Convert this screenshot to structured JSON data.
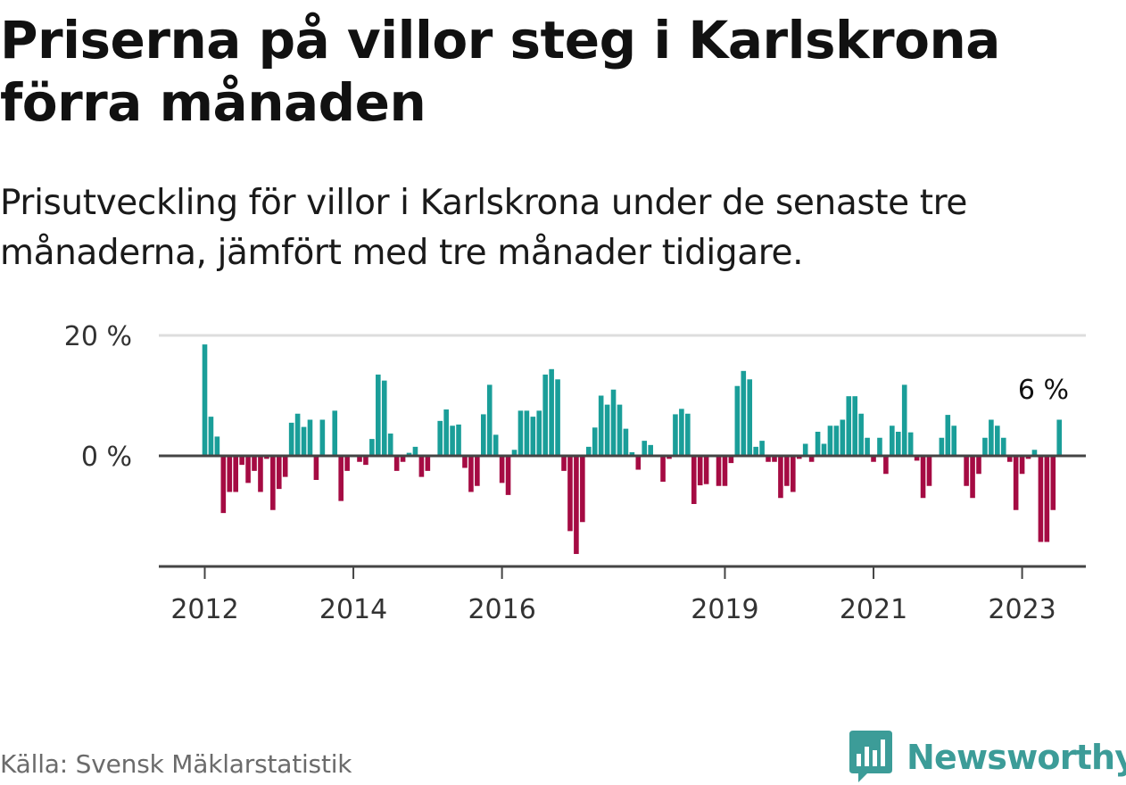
{
  "title": "Priserna på villor steg i Karlskrona förra månaden",
  "subtitle": "Prisutveckling för villor i Karlskrona under de senaste tre månaderna, jämfört med tre månader tidigare.",
  "source": "Källa: Svensk Mäklarstatistik",
  "brand": {
    "name": "Newsworthy",
    "logo_icon": "newsworthy-bar-chart-icon"
  },
  "colors": {
    "positive": "#1a9e99",
    "negative": "#a50b43",
    "axis": "#444444",
    "grid": "#dddddd",
    "logo": "#3c9c98"
  },
  "chart_data": {
    "type": "bar",
    "title": "",
    "xlabel": "",
    "ylabel": "",
    "unit": "%",
    "ylim": [
      -18,
      20
    ],
    "yticks": [
      {
        "value": 0,
        "label": "0 %"
      },
      {
        "value": 20,
        "label": "20 %"
      }
    ],
    "grid": true,
    "x_start": "2012-01",
    "xticks": [
      {
        "date": "2012-01",
        "label": "2012"
      },
      {
        "date": "2014-01",
        "label": "2014"
      },
      {
        "date": "2016-01",
        "label": "2016"
      },
      {
        "date": "2019-01",
        "label": "2019"
      },
      {
        "date": "2021-01",
        "label": "2021"
      },
      {
        "date": "2023-01",
        "label": "2023"
      }
    ],
    "annotation": {
      "date": "2023-04",
      "value": 6,
      "label": "6 %"
    },
    "values": [
      18.5,
      6.5,
      3.2,
      -9.5,
      -6,
      -6,
      -1.5,
      -4.5,
      -2.5,
      -6,
      -0.5,
      -9,
      -5.5,
      -3.5,
      5.5,
      7,
      4.8,
      6,
      -4,
      6,
      0,
      7.5,
      -7.5,
      -2.5,
      0,
      -1,
      -1.5,
      2.8,
      13.5,
      12.5,
      3.7,
      -2.5,
      -1,
      0.5,
      1.5,
      -3.5,
      -2.5,
      0,
      5.8,
      7.7,
      5,
      5.2,
      -2,
      -6,
      -5,
      6.9,
      11.8,
      3.5,
      -4.5,
      -6.5,
      1,
      7.5,
      7.5,
      6.5,
      7.5,
      13.5,
      14.4,
      12.7,
      -2.5,
      -12.5,
      -16.3,
      -11,
      1.5,
      4.7,
      10,
      8.5,
      11,
      8.5,
      4.5,
      0.6,
      -2.3,
      2.5,
      1.8,
      0,
      -4.3,
      -0.5,
      6.9,
      7.8,
      7,
      -8,
      -4.9,
      -4.7,
      0,
      -5,
      -5,
      -1.2,
      11.6,
      14.1,
      12.7,
      1.5,
      2.5,
      -1,
      -1,
      -7,
      -5,
      -6,
      -0.5,
      2,
      -1,
      4,
      2,
      5,
      5,
      6,
      9.9,
      9.9,
      7,
      3,
      -1,
      3,
      -3,
      5,
      4,
      11.8,
      3.9,
      -0.8,
      -7,
      -5,
      0,
      3,
      6.8,
      5,
      0,
      -5,
      -7,
      -3,
      3,
      6,
      5,
      3,
      -1,
      -9,
      -3,
      -0.5,
      1,
      -14.3,
      -14.3,
      -9,
      6
    ]
  }
}
